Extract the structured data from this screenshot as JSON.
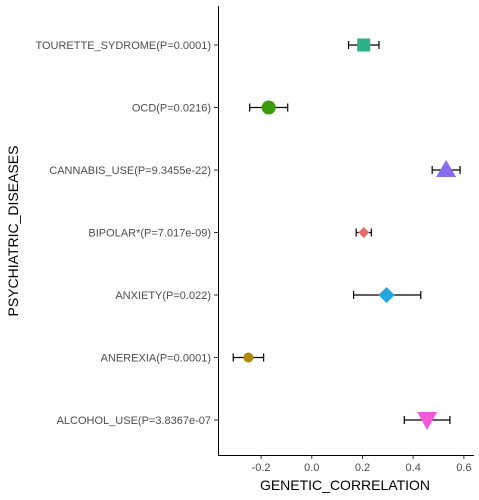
{
  "chart_data": {
    "type": "scatter",
    "title": "",
    "xlabel": "GENETIC_CORRELATION",
    "ylabel": "PSYCHIATRIC_DISEASES",
    "xlim": [
      -0.37,
      0.64
    ],
    "x_ticks": [
      -0.2,
      0.0,
      0.2,
      0.4,
      0.6
    ],
    "x_tick_labels": [
      "-0.2",
      "0.0",
      "0.2",
      "0.4",
      "0.6"
    ],
    "grid": false,
    "legend": "none",
    "points": [
      {
        "label": "TOURETTE_SYDROME(P=0.0001)",
        "value": 0.205,
        "lower": 0.145,
        "upper": 0.265,
        "shape": "square",
        "color": "#2bb08a"
      },
      {
        "label": "OCD(P=0.0216)",
        "value": -0.17,
        "lower": -0.245,
        "upper": -0.095,
        "shape": "circle",
        "color": "#3a9a0e"
      },
      {
        "label": "CANNABIS_USE(P=9.3455e-22)",
        "value": 0.53,
        "lower": 0.475,
        "upper": 0.585,
        "shape": "triangle-up",
        "color": "#8b6cf0"
      },
      {
        "label": "BIPOLAR*(P=7.017e-09)",
        "value": 0.205,
        "lower": 0.175,
        "upper": 0.235,
        "shape": "diamond-small",
        "color": "#e36d6d"
      },
      {
        "label": "ANXIETY(P=0.022)",
        "value": 0.295,
        "lower": 0.165,
        "upper": 0.43,
        "shape": "diamond",
        "color": "#22a6e0"
      },
      {
        "label": "ANEREXIA(P=0.0001)",
        "value": -0.25,
        "lower": -0.31,
        "upper": -0.19,
        "shape": "circle-small",
        "color": "#b38600"
      },
      {
        "label": "ALCOHOL_USE(P=3.8367e-07",
        "value": 0.455,
        "lower": 0.365,
        "upper": 0.545,
        "shape": "triangle-down",
        "color": "#f25bd6"
      }
    ]
  }
}
